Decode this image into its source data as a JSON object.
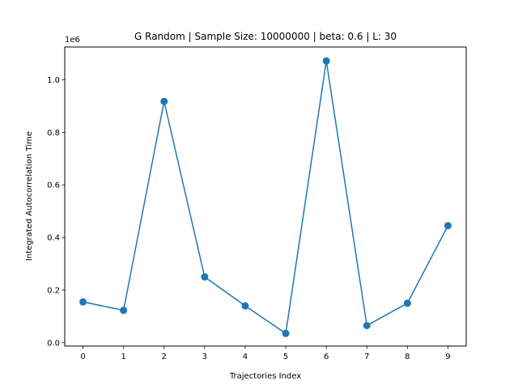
{
  "chart_data": {
    "type": "line",
    "title": "G Random | Sample Size: 10000000 | beta: 0.6 | L: 30",
    "xlabel": "Trajectories Index",
    "ylabel": "Integrated Autocorrelation Time",
    "y_offset_label": "1e6",
    "x": [
      0,
      1,
      2,
      3,
      4,
      5,
      6,
      7,
      8,
      9
    ],
    "series": [
      {
        "values": [
          155000,
          123000,
          918000,
          250000,
          140000,
          35000,
          1072000,
          65000,
          150000,
          445000
        ]
      }
    ],
    "xticks": [
      0,
      1,
      2,
      3,
      4,
      5,
      6,
      7,
      8,
      9
    ],
    "yticks": [
      0,
      200000,
      400000,
      600000,
      800000,
      1000000
    ],
    "ytick_labels": [
      "0.0",
      "0.2",
      "0.4",
      "0.6",
      "0.8",
      "1.0"
    ],
    "xlim": [
      -0.45,
      9.45
    ],
    "ylim": [
      -13000,
      1125000
    ],
    "grid": false,
    "colors": {
      "line": "#1f77b4",
      "marker": "#1f77b4",
      "axes": "#000000"
    }
  }
}
